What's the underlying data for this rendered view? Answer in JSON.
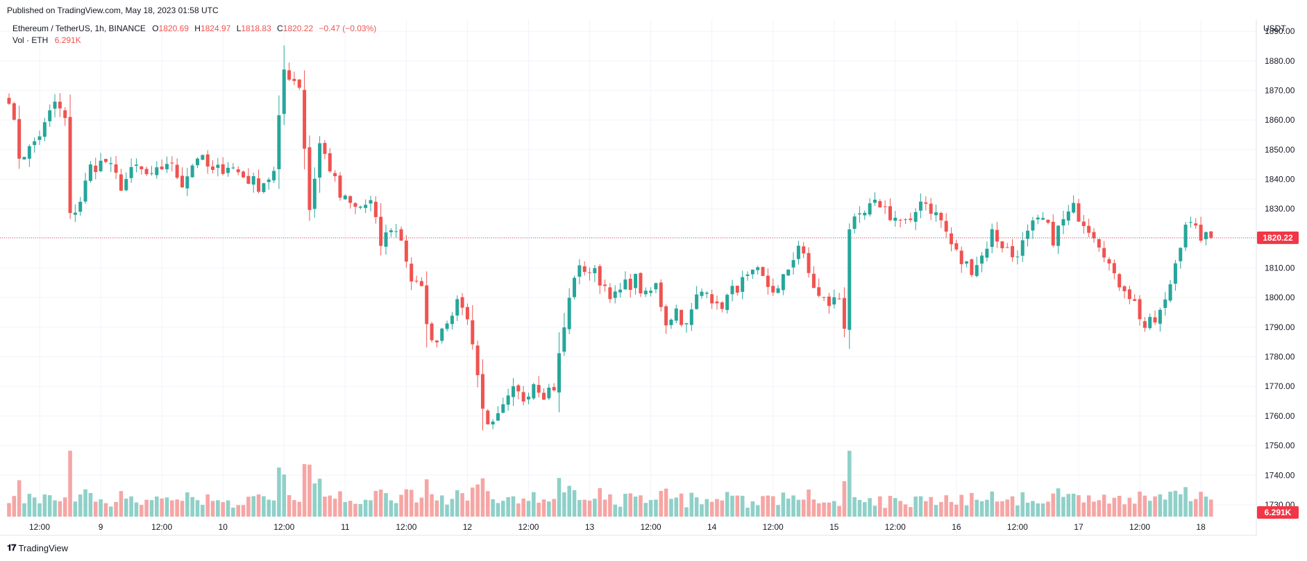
{
  "header": {
    "published": "Published on TradingView.com, May 18, 2023 01:58 UTC"
  },
  "legend": {
    "symbol": "Ethereum / TetherUS, 1h, BINANCE",
    "o_label": "O",
    "o_value": "1820.69",
    "h_label": "H",
    "h_value": "1824.97",
    "l_label": "L",
    "l_value": "1818.83",
    "c_label": "C",
    "c_value": "1820.22",
    "change": "−0.47 (−0.03%)",
    "vol_label": "Vol · ETH",
    "vol_value": "6.291K"
  },
  "footer": {
    "brand": "TradingView"
  },
  "colors": {
    "up": "#26a69a",
    "down": "#ef5350",
    "vol_up": "#8fd0c8",
    "vol_down": "#f5a6a4",
    "grid": "#f0f3fa",
    "last": "#f23645"
  },
  "chart_data": {
    "type": "candlestick",
    "currency": "USDT",
    "interval": "1h",
    "y_range": [
      1726,
      1894
    ],
    "y_ticks": [
      1730,
      1740,
      1750,
      1760,
      1770,
      1780,
      1790,
      1800,
      1810,
      1820,
      1830,
      1840,
      1850,
      1860,
      1870,
      1880,
      1890
    ],
    "y_tick_labels": [
      "1730.00",
      "1740.00",
      "1750.00",
      "1760.00",
      "1770.00",
      "1780.00",
      "1790.00",
      "1800.00",
      "1810.00",
      "1820.00",
      "1830.00",
      "1840.00",
      "1850.00",
      "1860.00",
      "1870.00",
      "1880.00",
      "1890.00"
    ],
    "x_ticks": [
      {
        "index": 6,
        "label": "12:00"
      },
      {
        "index": 18,
        "label": "9"
      },
      {
        "index": 30,
        "label": "12:00"
      },
      {
        "index": 42,
        "label": "10"
      },
      {
        "index": 54,
        "label": "12:00"
      },
      {
        "index": 66,
        "label": "11"
      },
      {
        "index": 78,
        "label": "12:00"
      },
      {
        "index": 90,
        "label": "12"
      },
      {
        "index": 102,
        "label": "12:00"
      },
      {
        "index": 114,
        "label": "13"
      },
      {
        "index": 126,
        "label": "12:00"
      },
      {
        "index": 138,
        "label": "14"
      },
      {
        "index": 150,
        "label": "12:00"
      },
      {
        "index": 162,
        "label": "15"
      },
      {
        "index": 174,
        "label": "12:00"
      },
      {
        "index": 186,
        "label": "16"
      },
      {
        "index": 198,
        "label": "12:00"
      },
      {
        "index": 210,
        "label": "17"
      },
      {
        "index": 222,
        "label": "12:00"
      },
      {
        "index": 234,
        "label": "18"
      }
    ],
    "last_price": 1820.22,
    "last_price_label": "1820.22",
    "last_volume_label": "6.291K",
    "anchors": [
      [
        0,
        1868
      ],
      [
        2,
        1848
      ],
      [
        4,
        1850
      ],
      [
        7,
        1858
      ],
      [
        9,
        1866
      ],
      [
        11,
        1860
      ],
      [
        12,
        1827
      ],
      [
        14,
        1833
      ],
      [
        16,
        1844
      ],
      [
        19,
        1846
      ],
      [
        22,
        1838
      ],
      [
        25,
        1844
      ],
      [
        28,
        1840
      ],
      [
        31,
        1846
      ],
      [
        34,
        1839
      ],
      [
        37,
        1848
      ],
      [
        40,
        1842
      ],
      [
        43,
        1845
      ],
      [
        46,
        1841
      ],
      [
        49,
        1838
      ],
      [
        52,
        1842
      ],
      [
        54,
        1877
      ],
      [
        57,
        1872
      ],
      [
        59,
        1830
      ],
      [
        61,
        1852
      ],
      [
        63,
        1844
      ],
      [
        65,
        1834
      ],
      [
        68,
        1830
      ],
      [
        71,
        1832
      ],
      [
        73,
        1818
      ],
      [
        75,
        1824
      ],
      [
        77,
        1820
      ],
      [
        79,
        1806
      ],
      [
        81,
        1802
      ],
      [
        83,
        1784
      ],
      [
        85,
        1790
      ],
      [
        87,
        1796
      ],
      [
        89,
        1798
      ],
      [
        91,
        1786
      ],
      [
        93,
        1762
      ],
      [
        95,
        1756
      ],
      [
        97,
        1762
      ],
      [
        99,
        1768
      ],
      [
        101,
        1766
      ],
      [
        103,
        1772
      ],
      [
        105,
        1768
      ],
      [
        107,
        1770
      ],
      [
        109,
        1790
      ],
      [
        111,
        1808
      ],
      [
        113,
        1810
      ],
      [
        115,
        1808
      ],
      [
        117,
        1804
      ],
      [
        119,
        1800
      ],
      [
        121,
        1804
      ],
      [
        123,
        1806
      ],
      [
        125,
        1800
      ],
      [
        127,
        1804
      ],
      [
        129,
        1792
      ],
      [
        131,
        1796
      ],
      [
        133,
        1790
      ],
      [
        135,
        1800
      ],
      [
        137,
        1804
      ],
      [
        139,
        1796
      ],
      [
        141,
        1800
      ],
      [
        143,
        1804
      ],
      [
        145,
        1806
      ],
      [
        147,
        1808
      ],
      [
        149,
        1804
      ],
      [
        151,
        1802
      ],
      [
        153,
        1810
      ],
      [
        155,
        1818
      ],
      [
        157,
        1808
      ],
      [
        159,
        1800
      ],
      [
        161,
        1798
      ],
      [
        163,
        1800
      ],
      [
        164,
        1791
      ],
      [
        165,
        1824
      ],
      [
        167,
        1826
      ],
      [
        169,
        1830
      ],
      [
        171,
        1832
      ],
      [
        173,
        1828
      ],
      [
        175,
        1826
      ],
      [
        177,
        1824
      ],
      [
        179,
        1834
      ],
      [
        181,
        1830
      ],
      [
        183,
        1826
      ],
      [
        185,
        1818
      ],
      [
        187,
        1812
      ],
      [
        189,
        1810
      ],
      [
        191,
        1814
      ],
      [
        193,
        1822
      ],
      [
        195,
        1818
      ],
      [
        197,
        1814
      ],
      [
        199,
        1818
      ],
      [
        201,
        1824
      ],
      [
        203,
        1826
      ],
      [
        205,
        1820
      ],
      [
        207,
        1826
      ],
      [
        209,
        1830
      ],
      [
        211,
        1826
      ],
      [
        213,
        1822
      ],
      [
        215,
        1816
      ],
      [
        217,
        1806
      ],
      [
        219,
        1804
      ],
      [
        221,
        1798
      ],
      [
        223,
        1790
      ],
      [
        225,
        1792
      ],
      [
        227,
        1798
      ],
      [
        229,
        1812
      ],
      [
        231,
        1826
      ],
      [
        233,
        1822
      ],
      [
        235,
        1820
      ],
      [
        236,
        1820.22
      ]
    ],
    "volume_range": [
      0,
      25000
    ]
  }
}
